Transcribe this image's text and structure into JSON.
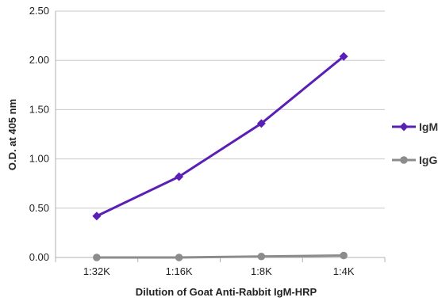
{
  "chart_data": {
    "type": "line",
    "title": "",
    "xlabel": "Dilution of Goat Anti-Rabbit IgM-HRP",
    "ylabel": "O.D. at 405 nm",
    "categories": [
      "1:32K",
      "1:16K",
      "1:8K",
      "1:4K"
    ],
    "ylim": [
      0,
      2.5
    ],
    "yticks": [
      "0.00",
      "0.50",
      "1.00",
      "1.50",
      "2.00",
      "2.50"
    ],
    "grid": "horizontal",
    "legend_position": "right",
    "series": [
      {
        "name": "IgM",
        "values": [
          0.42,
          0.82,
          1.36,
          2.04
        ],
        "color": "#5a1fb5",
        "marker": "diamond"
      },
      {
        "name": "IgG",
        "values": [
          0.0,
          0.0,
          0.01,
          0.02
        ],
        "color": "#8c8c8c",
        "marker": "circle"
      }
    ]
  }
}
